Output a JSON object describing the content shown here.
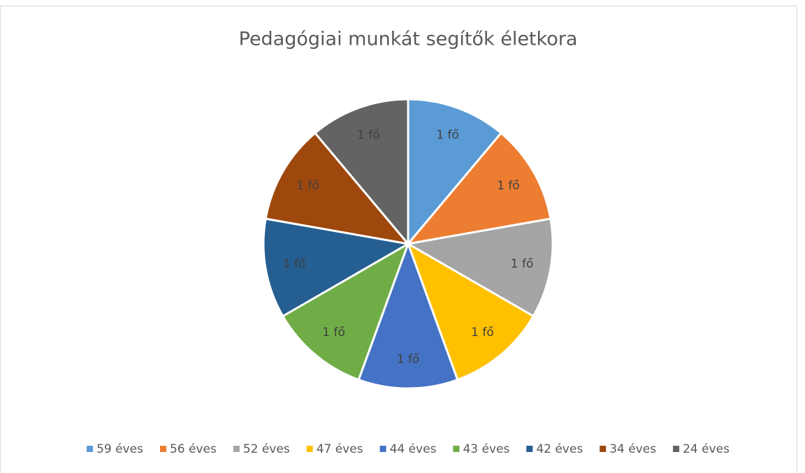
{
  "chart_data": {
    "type": "pie",
    "title": "Pedagógiai munkát segítők életkora",
    "categories": [
      "59 éves",
      "56 éves",
      "52 éves",
      "47 éves",
      "44 éves",
      "43 éves",
      "42 éves",
      "34 éves",
      "24 éves"
    ],
    "values": [
      1,
      1,
      1,
      1,
      1,
      1,
      1,
      1,
      1
    ],
    "value_labels": [
      "1 fő",
      "1 fő",
      "1 fő",
      "1 fő",
      "1 fő",
      "1 fő",
      "1 fő",
      "1 fő",
      "1 fő"
    ],
    "colors": [
      "#5b9bd5",
      "#ed7d31",
      "#a5a5a5",
      "#ffc000",
      "#4472c4",
      "#70ad47",
      "#255e91",
      "#9e480e",
      "#636363"
    ],
    "legend": "bottom"
  }
}
